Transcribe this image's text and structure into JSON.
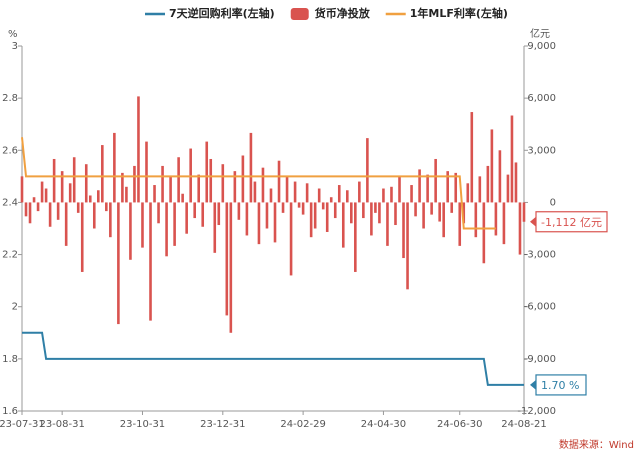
{
  "chart_data": {
    "type": "bar",
    "left_axis_label": "%",
    "right_axis_label": "亿元",
    "source": "数据来源：Wind",
    "categories": [
      "23-07-31",
      null,
      null,
      null,
      null,
      null,
      null,
      null,
      null,
      null,
      "23-08-31",
      null,
      null,
      null,
      null,
      null,
      null,
      null,
      null,
      null,
      null,
      null,
      null,
      null,
      null,
      null,
      null,
      null,
      null,
      null,
      "23-10-31",
      null,
      null,
      null,
      null,
      null,
      null,
      null,
      null,
      null,
      null,
      null,
      null,
      null,
      null,
      null,
      null,
      null,
      null,
      null,
      "23-12-31",
      null,
      null,
      null,
      null,
      null,
      null,
      null,
      null,
      null,
      null,
      null,
      null,
      null,
      null,
      null,
      null,
      null,
      null,
      null,
      "24-02-29",
      null,
      null,
      null,
      null,
      null,
      null,
      null,
      null,
      null,
      null,
      null,
      null,
      null,
      null,
      null,
      null,
      null,
      null,
      null,
      "24-04-30",
      null,
      null,
      null,
      null,
      null,
      null,
      null,
      null,
      null,
      null,
      null,
      null,
      null,
      null,
      null,
      null,
      null,
      null,
      "24-06-30",
      null,
      null,
      null,
      null,
      null,
      null,
      null,
      null,
      null,
      null,
      null,
      null,
      null,
      null,
      null,
      "24-08-21"
    ],
    "ylim": [
      1.6,
      3
    ],
    "yticks": [
      1.6,
      1.8,
      2,
      2.2,
      2.4,
      2.6,
      2.8,
      3
    ],
    "y2lim": [
      -12000,
      9000
    ],
    "y2ticks": [
      {
        "value": -12000,
        "label": "-12,000"
      },
      {
        "value": -9000,
        "label": "-9,000"
      },
      {
        "value": -6000,
        "label": "-6,000"
      },
      {
        "value": -3000,
        "label": "-3,000"
      },
      0,
      {
        "value": 3000,
        "label": "3,000"
      },
      {
        "value": 6000,
        "label": "6,000"
      },
      {
        "value": 9000,
        "label": "9,000"
      }
    ],
    "series": [
      {
        "name": "7天逆回购利率(左轴)",
        "type": "line",
        "color": "#2f7fa6",
        "values": [
          1.9,
          1.9,
          1.9,
          1.9,
          1.9,
          1.9,
          1.8,
          1.8,
          1.8,
          1.8,
          1.8,
          1.8,
          1.8,
          1.8,
          1.8,
          1.8,
          1.8,
          1.8,
          1.8,
          1.8,
          1.8,
          1.8,
          1.8,
          1.8,
          1.8,
          1.8,
          1.8,
          1.8,
          1.8,
          1.8,
          1.8,
          1.8,
          1.8,
          1.8,
          1.8,
          1.8,
          1.8,
          1.8,
          1.8,
          1.8,
          1.8,
          1.8,
          1.8,
          1.8,
          1.8,
          1.8,
          1.8,
          1.8,
          1.8,
          1.8,
          1.8,
          1.8,
          1.8,
          1.8,
          1.8,
          1.8,
          1.8,
          1.8,
          1.8,
          1.8,
          1.8,
          1.8,
          1.8,
          1.8,
          1.8,
          1.8,
          1.8,
          1.8,
          1.8,
          1.8,
          1.8,
          1.8,
          1.8,
          1.8,
          1.8,
          1.8,
          1.8,
          1.8,
          1.8,
          1.8,
          1.8,
          1.8,
          1.8,
          1.8,
          1.8,
          1.8,
          1.8,
          1.8,
          1.8,
          1.8,
          1.8,
          1.8,
          1.8,
          1.8,
          1.8,
          1.8,
          1.8,
          1.8,
          1.8,
          1.8,
          1.8,
          1.8,
          1.8,
          1.8,
          1.8,
          1.8,
          1.8,
          1.8,
          1.8,
          1.8,
          1.8,
          1.8,
          1.8,
          1.8,
          1.8,
          1.8,
          1.7,
          1.7,
          1.7,
          1.7,
          1.7,
          1.7,
          1.7,
          1.7,
          1.7,
          1.7
        ],
        "value_labels": [
          null,
          null,
          null,
          null,
          null,
          null,
          null,
          null,
          null,
          null,
          null,
          null,
          null,
          null,
          null,
          null,
          null,
          null,
          null,
          null,
          null,
          null,
          null,
          null,
          null,
          null,
          null,
          null,
          null,
          null,
          null,
          null,
          null,
          null,
          null,
          null,
          null,
          null,
          null,
          null,
          null,
          null,
          null,
          null,
          null,
          null,
          null,
          null,
          null,
          null,
          null,
          null,
          null,
          null,
          null,
          null,
          null,
          null,
          null,
          null,
          null,
          null,
          null,
          null,
          null,
          null,
          null,
          null,
          null,
          null,
          null,
          null,
          null,
          null,
          null,
          null,
          null,
          null,
          null,
          null,
          null,
          null,
          null,
          null,
          null,
          null,
          null,
          null,
          null,
          null,
          null,
          null,
          null,
          null,
          null,
          null,
          null,
          null,
          null,
          null,
          null,
          null,
          null,
          null,
          null,
          null,
          null,
          null,
          null,
          null,
          null,
          null,
          null,
          null,
          null,
          null,
          null,
          null,
          null,
          null,
          null,
          null,
          null,
          null,
          null,
          "1.70 %"
        ]
      },
      {
        "name": "货币净投放",
        "type": "bar",
        "axis": "y2",
        "color": "#d9534f",
        "values": [
          1500,
          -800,
          -1200,
          300,
          -500,
          1200,
          800,
          -1400,
          2500,
          -1000,
          1800,
          -2500,
          1100,
          2600,
          -600,
          -4000,
          2200,
          400,
          -1500,
          700,
          3300,
          -500,
          -2000,
          4000,
          -7000,
          1700,
          900,
          -3300,
          2100,
          6100,
          -2600,
          3500,
          -6800,
          1000,
          -1200,
          2100,
          -3100,
          1500,
          -2500,
          2600,
          500,
          -1800,
          3100,
          -900,
          1600,
          -1400,
          3500,
          2500,
          -2900,
          -1300,
          2200,
          -6500,
          -7500,
          1800,
          -1000,
          2700,
          -1900,
          4000,
          1200,
          -2400,
          2000,
          -1500,
          800,
          -2300,
          2400,
          -600,
          1500,
          -4200,
          1200,
          -300,
          -700,
          1100,
          -2000,
          -1500,
          800,
          -400,
          -1700,
          300,
          -900,
          1000,
          -2600,
          700,
          -1200,
          -4000,
          1200,
          -900,
          3700,
          -1900,
          -600,
          -1200,
          800,
          -2500,
          900,
          -1300,
          1500,
          -3200,
          -5000,
          1000,
          -800,
          1900,
          -1500,
          1600,
          -700,
          2500,
          -1100,
          -2000,
          1800,
          -600,
          1700,
          -2500,
          -1200,
          1100,
          5200,
          -2000,
          1500,
          -3500,
          2100,
          4200,
          -1900,
          3000,
          -2400,
          1600,
          5000,
          2300,
          -3000,
          -1112
        ],
        "value_labels": [
          null,
          null,
          null,
          null,
          null,
          null,
          null,
          null,
          null,
          null,
          null,
          null,
          null,
          null,
          null,
          null,
          null,
          null,
          null,
          null,
          null,
          null,
          null,
          null,
          null,
          null,
          null,
          null,
          null,
          null,
          null,
          null,
          null,
          null,
          null,
          null,
          null,
          null,
          null,
          null,
          null,
          null,
          null,
          null,
          null,
          null,
          null,
          null,
          null,
          null,
          null,
          null,
          null,
          null,
          null,
          null,
          null,
          null,
          null,
          null,
          null,
          null,
          null,
          null,
          null,
          null,
          null,
          null,
          null,
          null,
          null,
          null,
          null,
          null,
          null,
          null,
          null,
          null,
          null,
          null,
          null,
          null,
          null,
          null,
          null,
          null,
          null,
          null,
          null,
          null,
          null,
          null,
          null,
          null,
          null,
          null,
          null,
          null,
          null,
          null,
          null,
          null,
          null,
          null,
          null,
          null,
          null,
          null,
          null,
          null,
          null,
          null,
          null,
          null,
          null,
          null,
          null,
          null,
          null,
          null,
          null,
          null,
          null,
          null,
          null,
          "-1,112 亿元"
        ]
      },
      {
        "name": "1年MLF利率(左轴)",
        "type": "line",
        "color": "#f0a040",
        "values": [
          2.65,
          2.5,
          2.5,
          2.5,
          2.5,
          2.5,
          2.5,
          2.5,
          2.5,
          2.5,
          2.5,
          2.5,
          2.5,
          2.5,
          2.5,
          2.5,
          2.5,
          2.5,
          2.5,
          2.5,
          2.5,
          2.5,
          2.5,
          2.5,
          2.5,
          2.5,
          2.5,
          2.5,
          2.5,
          2.5,
          2.5,
          2.5,
          2.5,
          2.5,
          2.5,
          2.5,
          2.5,
          2.5,
          2.5,
          2.5,
          2.5,
          2.5,
          2.5,
          2.5,
          2.5,
          2.5,
          2.5,
          2.5,
          2.5,
          2.5,
          2.5,
          2.5,
          2.5,
          2.5,
          2.5,
          2.5,
          2.5,
          2.5,
          2.5,
          2.5,
          2.5,
          2.5,
          2.5,
          2.5,
          2.5,
          2.5,
          2.5,
          2.5,
          2.5,
          2.5,
          2.5,
          2.5,
          2.5,
          2.5,
          2.5,
          2.5,
          2.5,
          2.5,
          2.5,
          2.5,
          2.5,
          2.5,
          2.5,
          2.5,
          2.5,
          2.5,
          2.5,
          2.5,
          2.5,
          2.5,
          2.5,
          2.5,
          2.5,
          2.5,
          2.5,
          2.5,
          2.5,
          2.5,
          2.5,
          2.5,
          2.5,
          2.5,
          2.5,
          2.5,
          2.5,
          2.5,
          2.5,
          2.5,
          2.5,
          2.5,
          2.3,
          2.3,
          2.3,
          2.3,
          2.3,
          2.3,
          2.3,
          2.3,
          2.3,
          null,
          null,
          null,
          null,
          null,
          null,
          null
        ]
      }
    ]
  }
}
